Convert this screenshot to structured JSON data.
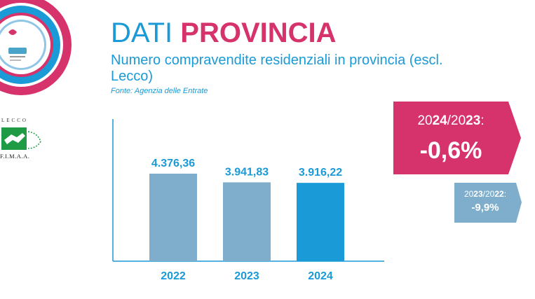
{
  "header": {
    "title_part1": "DATI ",
    "title_part2": "PROVINCIA",
    "subtitle": "Numero compravendite residenziali in provincia (escl. Lecco)",
    "source": "Fonte: Agenzia delle Entrate"
  },
  "logo": {
    "fimaa_top_text": "LECCO",
    "fimaa_bottom_text": "F.I.M.A.A."
  },
  "chart_data": {
    "type": "bar",
    "categories": [
      "2022",
      "2023",
      "2024"
    ],
    "values": [
      4376.36,
      3941.83,
      3916.22
    ],
    "labels": [
      "4.376,36",
      "3.941,83",
      "3.916,22"
    ],
    "title": "",
    "xlabel": "",
    "ylabel": "",
    "ylim": [
      0,
      5000
    ],
    "grid": false,
    "legend": "none",
    "colors": [
      "#7eaecc",
      "#7eaecc",
      "#1a9ad6"
    ]
  },
  "badges": {
    "main": {
      "parts": [
        {
          "text": "20",
          "bold": false
        },
        {
          "text": "24",
          "bold": true
        },
        {
          "text": "/20",
          "bold": false
        },
        {
          "text": "23",
          "bold": true
        },
        {
          "text": ":",
          "bold": false
        }
      ],
      "value": "-0,6%",
      "color": "#d6336c"
    },
    "secondary": {
      "parts": [
        {
          "text": "20",
          "bold": false
        },
        {
          "text": "23",
          "bold": true
        },
        {
          "text": "/20",
          "bold": false
        },
        {
          "text": "22",
          "bold": true
        },
        {
          "text": ":",
          "bold": false
        }
      ],
      "value": "-9,9%",
      "color": "#7eaecc"
    }
  },
  "colors": {
    "accent_blue": "#1a9ad6",
    "accent_pink": "#d6336c",
    "bar_muted": "#7eaecc",
    "fimaa_green": "#1f9a45"
  }
}
